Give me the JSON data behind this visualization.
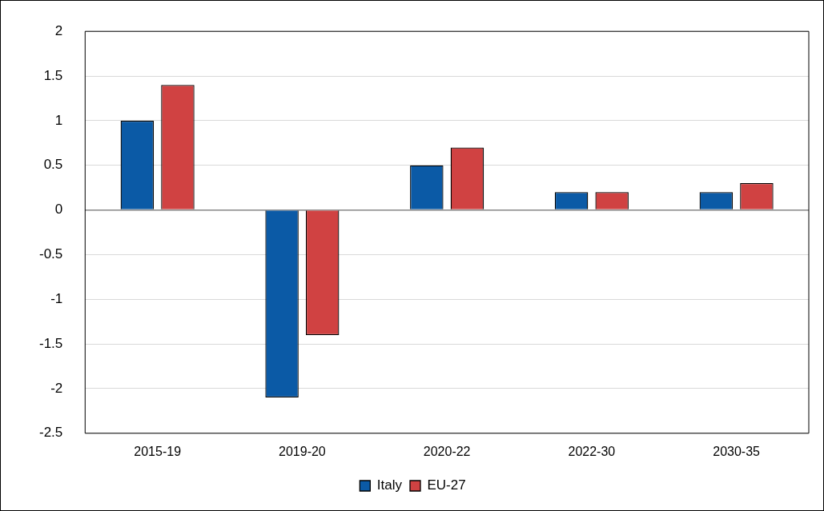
{
  "chart_data": {
    "type": "bar",
    "categories": [
      "2015-19",
      "2019-20",
      "2020-22",
      "2022-30",
      "2030-35"
    ],
    "series": [
      {
        "name": "Italy",
        "color": "#0b5aa6",
        "values": [
          1,
          -2.1,
          0.5,
          0.2,
          0.2
        ]
      },
      {
        "name": "EU-27",
        "color": "#d04242",
        "values": [
          1.4,
          -1.4,
          0.7,
          0.2,
          0.3
        ]
      }
    ],
    "ylim": [
      -2.5,
      2
    ],
    "yticks": [
      -2.5,
      -2,
      -1.5,
      -1,
      -0.5,
      0,
      0.5,
      1,
      1.5,
      2
    ],
    "grid": "y",
    "legend": "bottom"
  }
}
